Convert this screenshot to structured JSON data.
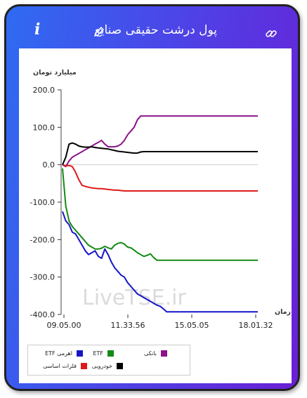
{
  "header": {
    "title": "پول درشت حقیقی صنایع",
    "info_icon": "i",
    "icons": [
      "info-icon",
      "pencil-icon",
      "link-icon"
    ]
  },
  "colors": {
    "card_gradient_start": "#2f6bf2",
    "card_gradient_end": "#6a1fd6",
    "zero_line": "#cccccc"
  },
  "chart_data": {
    "type": "line",
    "ylabel": "میلیارد تومان",
    "xlabel": "زمان",
    "ylim": [
      -400,
      200
    ],
    "yticks": [
      "200.0",
      "100.0",
      "0.0",
      "-100.0",
      "-200.0",
      "-300.0",
      "-400.0"
    ],
    "x_ticks": [
      "09.05.00",
      "11.33.56",
      "15.05.05",
      "18.01.32"
    ],
    "watermark": "LiveTSE.ir",
    "legend_position": "bottom-left",
    "series": [
      {
        "name": "اهرمی ETF",
        "color": "#1515c8",
        "values": [
          -125,
          -150,
          -160,
          -180,
          -185,
          -200,
          -215,
          -230,
          -240,
          -235,
          -230,
          -245,
          -250,
          -225,
          -240,
          -260,
          -275,
          -285,
          -295,
          -300,
          -315,
          -325,
          -335,
          -345,
          -350,
          -355,
          -360,
          -365,
          -370,
          -375,
          -378,
          -385,
          -393,
          -393,
          -393,
          -393,
          -393,
          -393,
          -393,
          -393,
          -393,
          -393,
          -393,
          -393,
          -393,
          -393,
          -393,
          -393,
          -393,
          -393,
          -393,
          -393,
          -393,
          -393,
          -393,
          -393,
          -393,
          -393,
          -393,
          -393,
          -393
        ]
      },
      {
        "name": "ETF",
        "color": "#138a13",
        "values": [
          -10,
          -110,
          -150,
          -165,
          -175,
          -185,
          -195,
          -205,
          -215,
          -220,
          -225,
          -225,
          -223,
          -218,
          -222,
          -225,
          -215,
          -210,
          -208,
          -212,
          -220,
          -222,
          -228,
          -235,
          -240,
          -245,
          -242,
          -238,
          -248,
          -255,
          -255,
          -255,
          -255,
          -255,
          -255,
          -255,
          -255,
          -255,
          -255,
          -255,
          -255,
          -255,
          -255,
          -255,
          -255,
          -255,
          -255,
          -255,
          -255,
          -255,
          -255,
          -255,
          -255,
          -255,
          -255,
          -255,
          -255,
          -255,
          -255,
          -255,
          -255
        ]
      },
      {
        "name": "بانکی",
        "color": "#8a138a",
        "values": [
          0,
          -5,
          10,
          20,
          25,
          30,
          35,
          40,
          45,
          50,
          55,
          60,
          65,
          55,
          48,
          48,
          48,
          50,
          55,
          65,
          80,
          90,
          100,
          120,
          130,
          130,
          130,
          130,
          130,
          130,
          130,
          130,
          130,
          130,
          130,
          130,
          130,
          130,
          130,
          130,
          130,
          130,
          130,
          130,
          130,
          130,
          130,
          130,
          130,
          130,
          130,
          130,
          130,
          130,
          130,
          130,
          130,
          130,
          130,
          130,
          130
        ]
      },
      {
        "name": "فلزات اساسی",
        "color": "#e01a1a",
        "values": [
          0,
          -3,
          -2,
          -5,
          -20,
          -40,
          -55,
          -58,
          -60,
          -62,
          -63,
          -64,
          -64,
          -65,
          -66,
          -67,
          -68,
          -68,
          -69,
          -70,
          -70,
          -70,
          -70,
          -70,
          -70,
          -70,
          -70,
          -70,
          -70,
          -70,
          -70,
          -70,
          -70,
          -70,
          -70,
          -70,
          -70,
          -70,
          -70,
          -70,
          -70,
          -70,
          -70,
          -70,
          -70,
          -70,
          -70,
          -70,
          -70,
          -70,
          -70,
          -70,
          -70,
          -70,
          -70,
          -70,
          -70,
          -70,
          -70,
          -70,
          -70
        ]
      },
      {
        "name": "خودرویی",
        "color": "#000000",
        "values": [
          0,
          20,
          55,
          58,
          55,
          50,
          48,
          47,
          47,
          48,
          46,
          45,
          44,
          43,
          42,
          40,
          38,
          36,
          35,
          34,
          33,
          32,
          31,
          31,
          34,
          35,
          35,
          35,
          35,
          35,
          35,
          35,
          35,
          35,
          35,
          35,
          35,
          35,
          35,
          35,
          35,
          35,
          35,
          35,
          35,
          35,
          35,
          35,
          35,
          35,
          35,
          35,
          35,
          35,
          35,
          35,
          35,
          35,
          35,
          35,
          35
        ]
      }
    ]
  }
}
